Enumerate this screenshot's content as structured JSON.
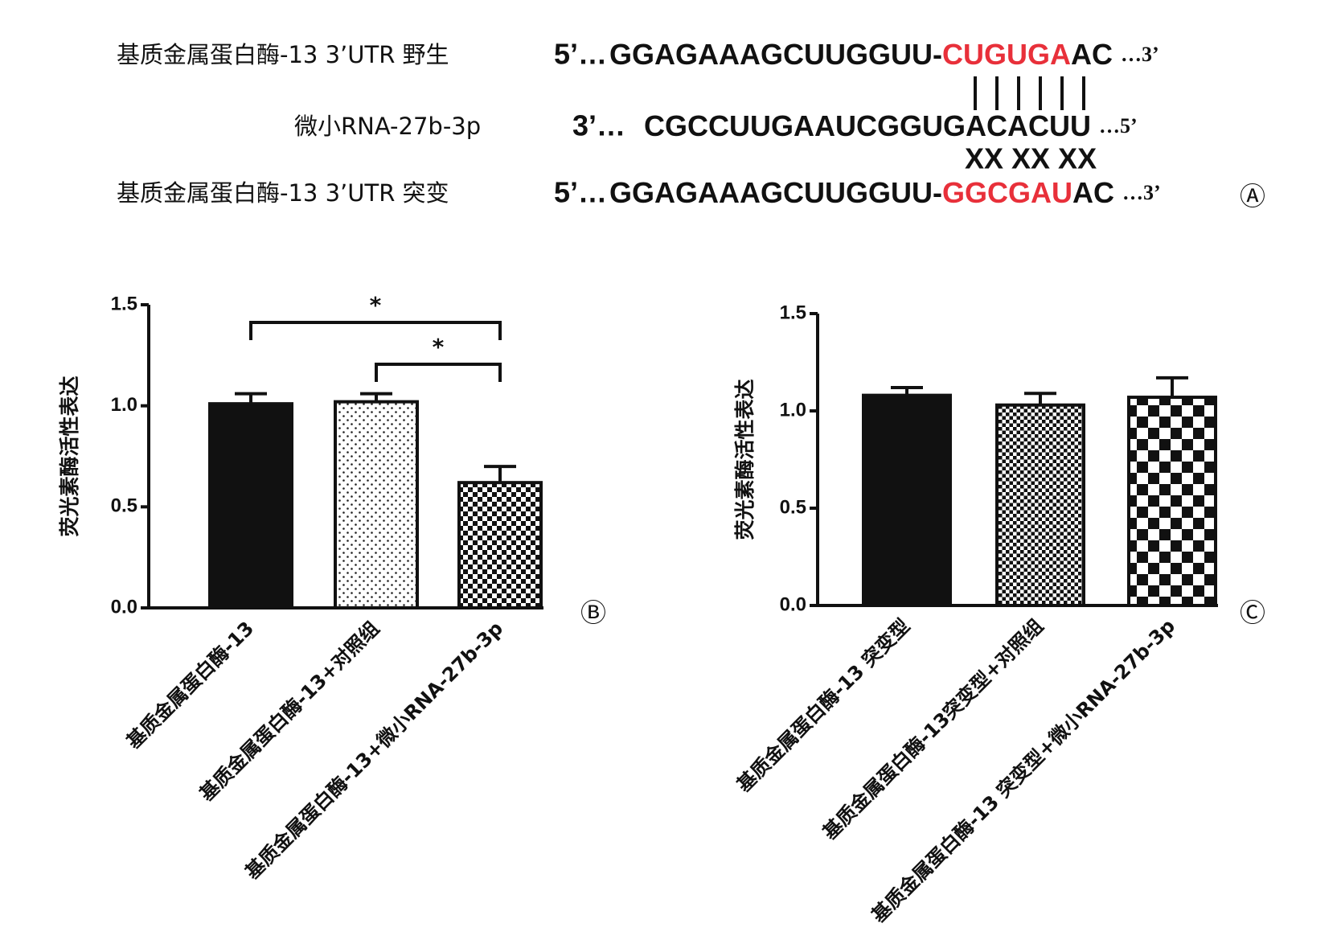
{
  "sequence_panel": {
    "label": "Ⓐ",
    "rows": [
      {
        "name": "基质金属蛋白酶-13 3’UTR 野生",
        "prefix": "5’…",
        "segments": [
          {
            "text": "GGAGAAAGCUUGGUU-",
            "color": "#111111"
          },
          {
            "text": "CUGUGA",
            "color": "#e8303a"
          },
          {
            "text": "AC",
            "color": "#111111"
          }
        ],
        "suffix": "…3’"
      },
      {
        "name": "微小RNA-27b-3p",
        "prefix": "3’…",
        "segments": [
          {
            "text": "CGCCUUGAAUCGGUGACACUU",
            "color": "#111111"
          }
        ],
        "suffix": "…5’"
      },
      {
        "name": "基质金属蛋白酶-13 3’UTR 突变",
        "prefix": "5’…",
        "segments": [
          {
            "text": "GGAGAAAGCUUGGUU-",
            "color": "#111111"
          },
          {
            "text": "GGCGAU",
            "color": "#e8303a"
          },
          {
            "text": "AC",
            "color": "#111111"
          }
        ],
        "suffix": "…3’"
      }
    ],
    "mismatch": "XX XX XX"
  },
  "chart_data": [
    {
      "type": "bar",
      "panel_label": "Ⓑ",
      "y_label": "荧光素酶活性表达",
      "categories": [
        "基质金属蛋白酶-13",
        "基质金属蛋白酶-13+对照组",
        "基质金属蛋白酶-13+微小RNA-27b-3p"
      ],
      "values": [
        1.01,
        1.02,
        0.62
      ],
      "errors": [
        0.05,
        0.04,
        0.08
      ],
      "patterns": [
        "solid",
        "dots",
        "checker-small"
      ],
      "ylim": [
        0,
        1.5
      ],
      "yticks": [
        {
          "value": 0,
          "label": "0.0"
        },
        {
          "value": 0.5,
          "label": "0.5"
        },
        {
          "value": 1,
          "label": "1.0"
        },
        {
          "value": 1.5,
          "label": "1.5"
        }
      ],
      "significance": [
        {
          "from": 0,
          "to": 2,
          "label": "*"
        },
        {
          "from": 1,
          "to": 2,
          "label": "*"
        }
      ]
    },
    {
      "type": "bar",
      "panel_label": "Ⓒ",
      "y_label": "荧光素酶活性表达",
      "categories": [
        "基质金属蛋白酶-13 突变型",
        "基质金属蛋白酶-13突变型+对照组",
        "基质金属蛋白酶-13 突变型+微小RNA-27b-3p"
      ],
      "values": [
        1.08,
        1.03,
        1.07
      ],
      "errors": [
        0.04,
        0.06,
        0.1
      ],
      "patterns": [
        "solid",
        "checker-fine",
        "checker-large"
      ],
      "ylim": [
        0,
        1.5
      ],
      "yticks": [
        {
          "value": 0,
          "label": "0.0"
        },
        {
          "value": 0.5,
          "label": "0.5"
        },
        {
          "value": 1,
          "label": "1.0"
        },
        {
          "value": 1.5,
          "label": "1.5"
        }
      ]
    }
  ]
}
